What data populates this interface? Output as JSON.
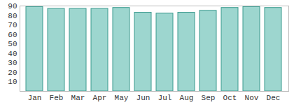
{
  "chart_data": {
    "type": "bar",
    "categories": [
      "Jan",
      "Feb",
      "Mar",
      "Apr",
      "May",
      "Jun",
      "Jul",
      "Aug",
      "Sep",
      "Oct",
      "Nov",
      "Dec"
    ],
    "values": [
      89,
      87,
      87,
      87,
      88,
      83,
      82,
      83,
      85,
      88,
      89,
      88
    ],
    "color": "#9dd6cf",
    "ylim": [
      0,
      90
    ],
    "yticks": [
      10,
      20,
      30,
      40,
      50,
      60,
      70,
      80,
      90
    ],
    "grid": false
  }
}
